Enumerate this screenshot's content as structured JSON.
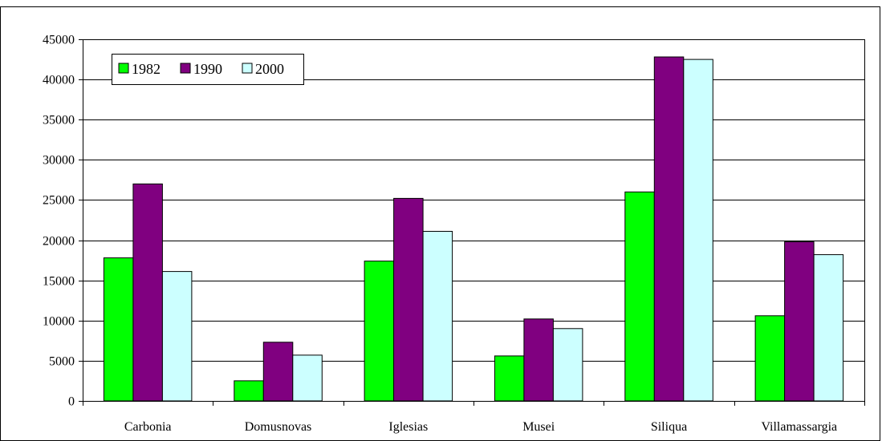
{
  "chart_data": {
    "type": "bar",
    "title": "",
    "xlabel": "",
    "ylabel": "",
    "categories": [
      "Carbonia",
      "Domusnovas",
      "Iglesias",
      "Musei",
      "Siliqua",
      "Villamassargia"
    ],
    "series": [
      {
        "name": "1982",
        "color": "#00ff00",
        "values": [
          17800,
          2500,
          17400,
          5600,
          26000,
          10600
        ]
      },
      {
        "name": "1990",
        "color": "#800080",
        "values": [
          27000,
          7300,
          25200,
          10200,
          42800,
          19800
        ]
      },
      {
        "name": "2000",
        "color": "#ccffff",
        "values": [
          16100,
          5700,
          21100,
          9000,
          42500,
          18200
        ]
      }
    ],
    "ylim": [
      0,
      45000
    ],
    "yticks": [
      "0",
      "5000",
      "10000",
      "15000",
      "20000",
      "25000",
      "30000",
      "35000",
      "40000",
      "45000"
    ],
    "grid": true,
    "legend_position": "top-left"
  }
}
